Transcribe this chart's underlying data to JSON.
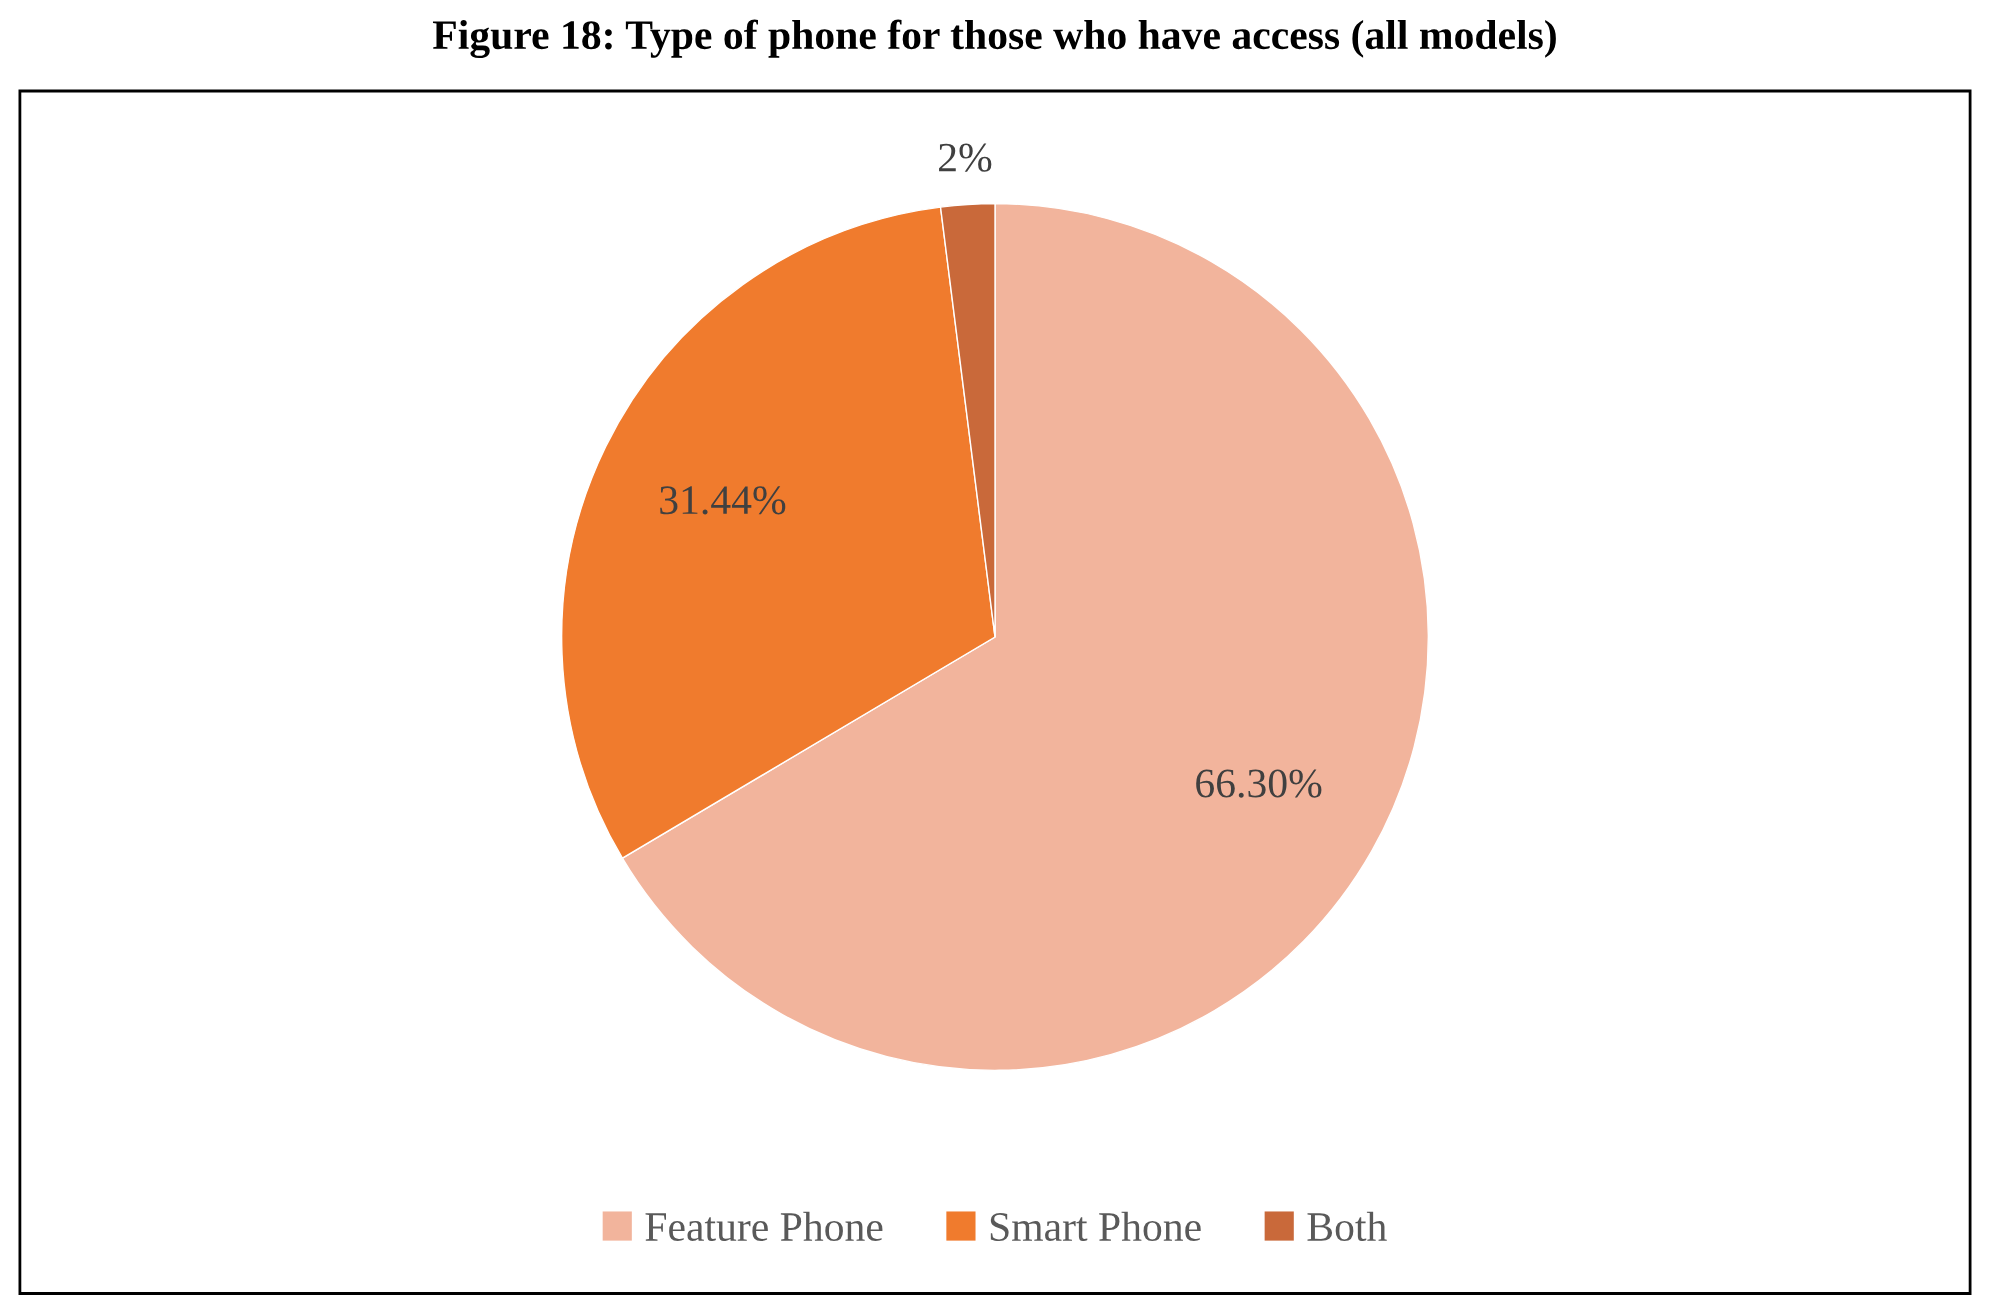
{
  "chart_data": {
    "type": "pie",
    "title": "Figure 18: Type of phone for those who have access (all models)",
    "categories": [
      "Feature Phone",
      "Smart Phone",
      "Both"
    ],
    "values": [
      66.3,
      31.44,
      2
    ],
    "value_labels": [
      "66.30%",
      "31.44%",
      "2%"
    ],
    "colors": [
      "#f2b49c",
      "#f07b2d",
      "#c9693a"
    ],
    "legend": "bottom"
  }
}
